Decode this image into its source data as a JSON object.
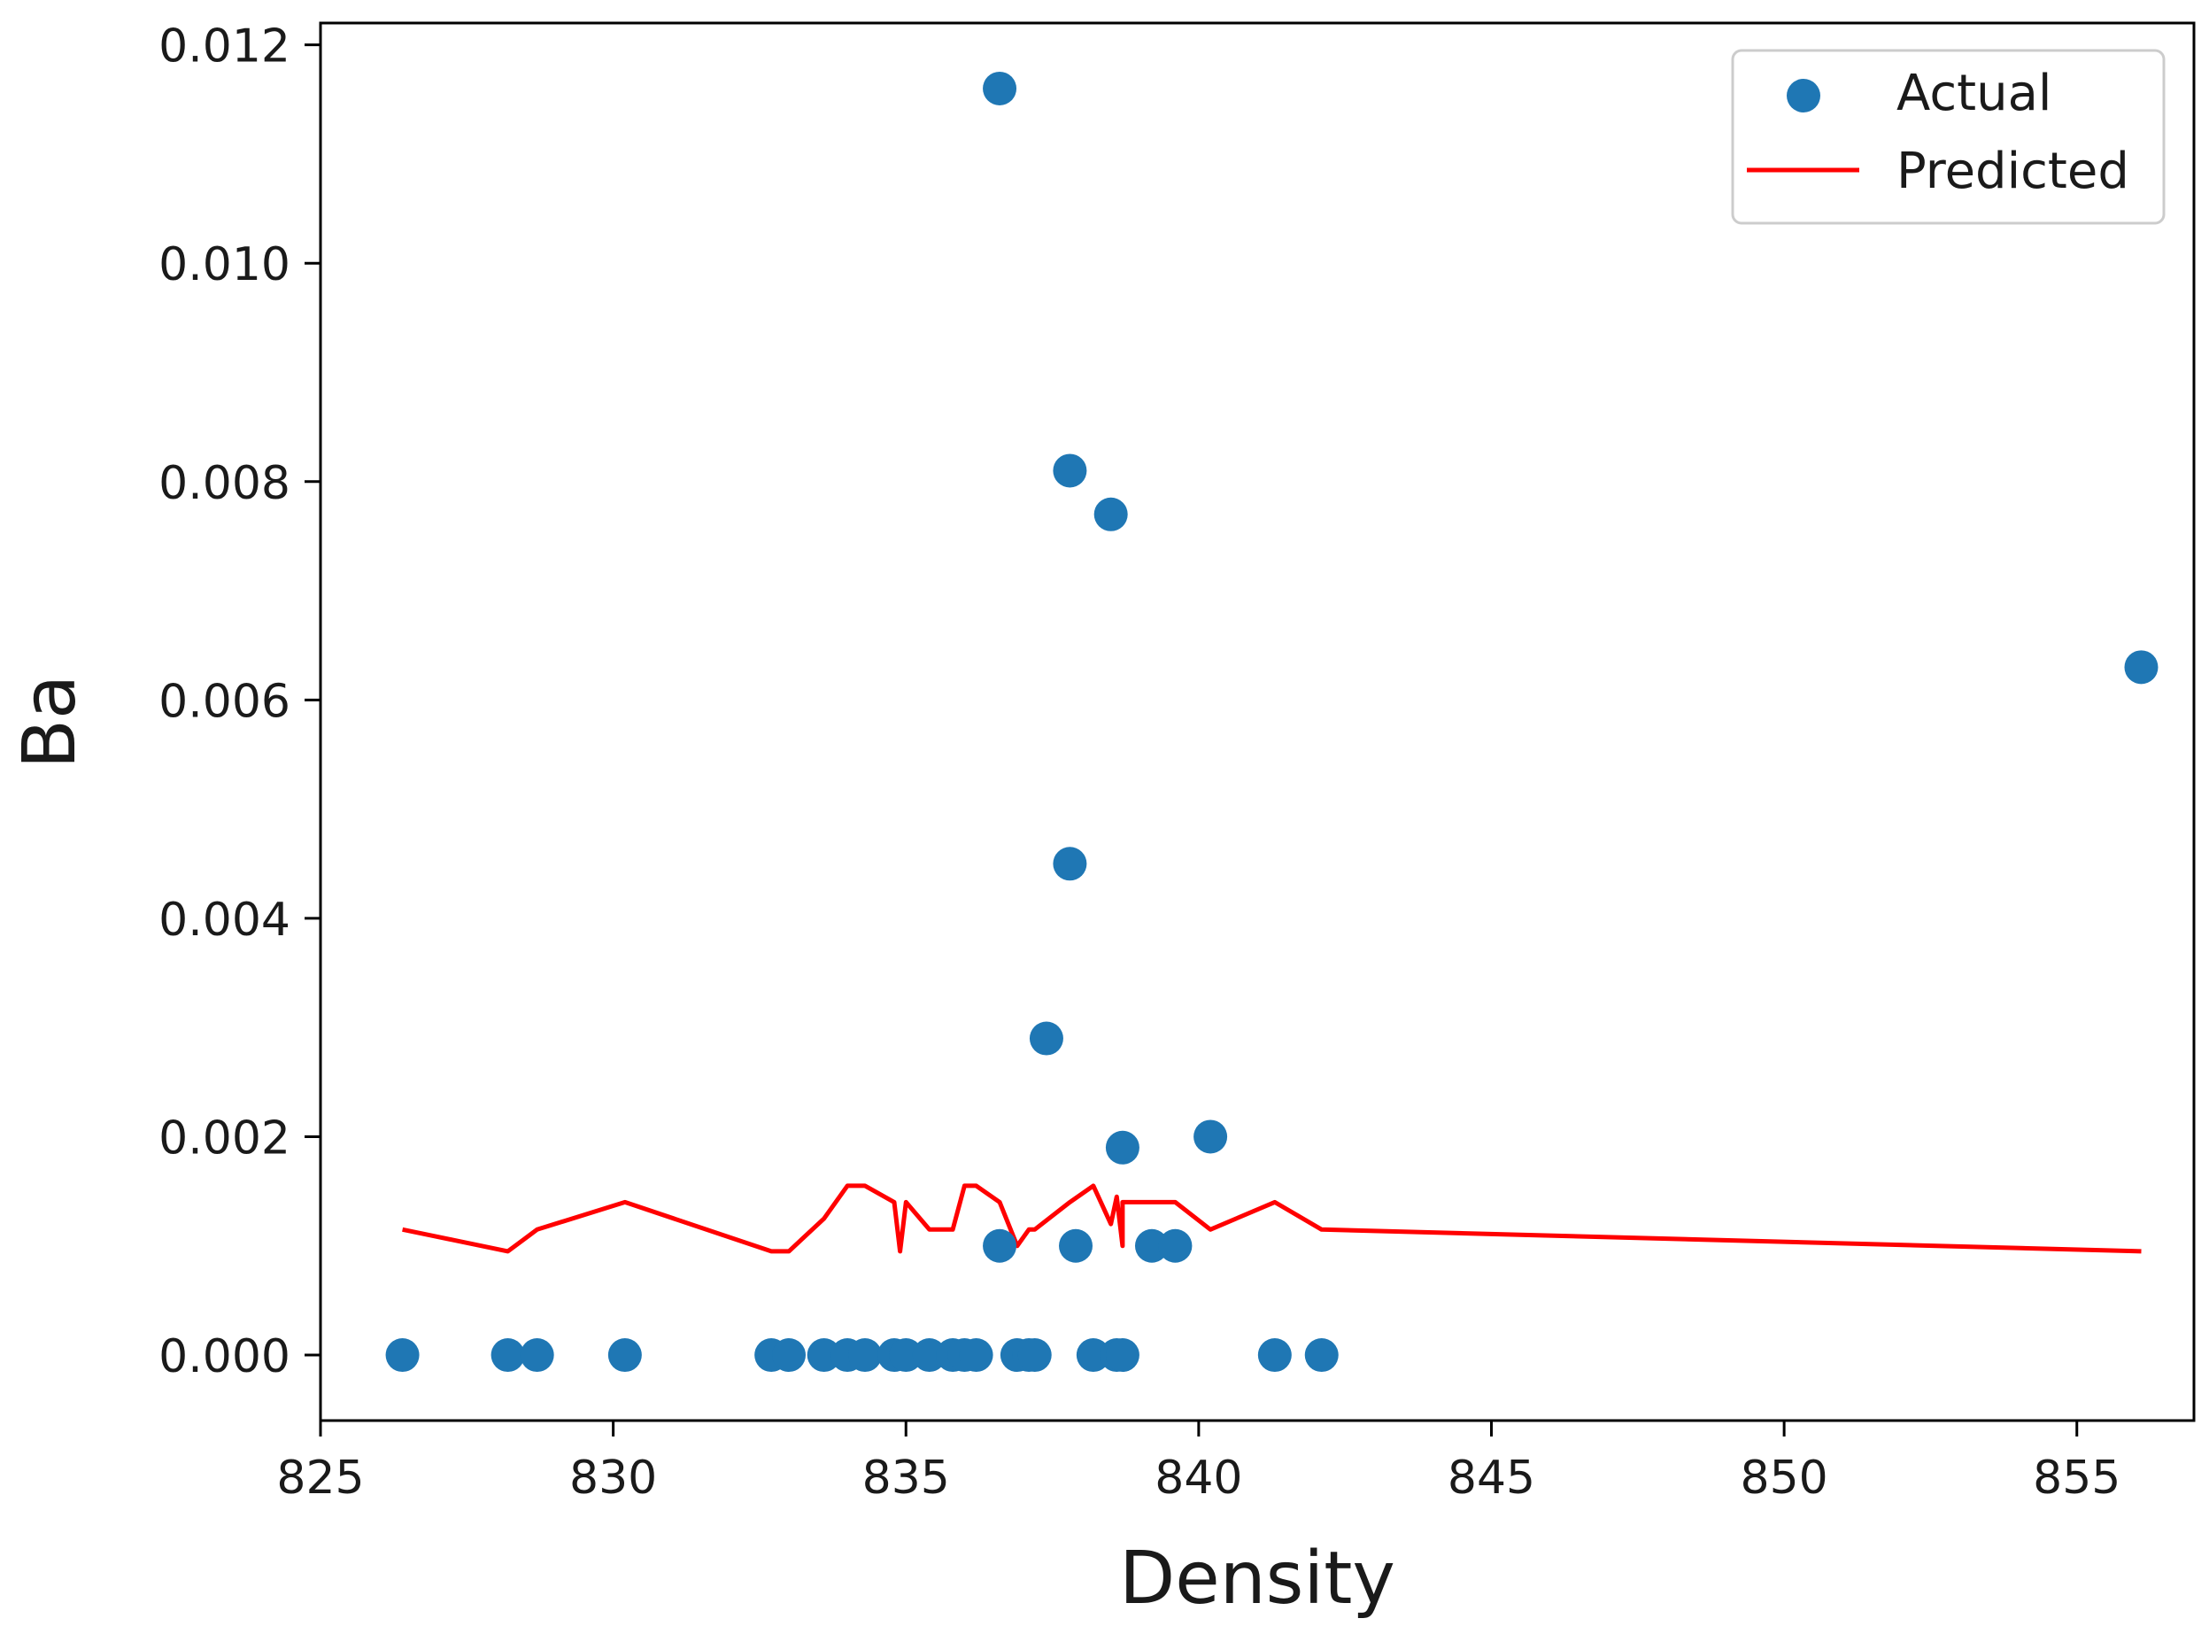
{
  "chart_data": {
    "type": "scatter",
    "title": "",
    "xlabel": "Density",
    "ylabel": "Ba",
    "xlim": [
      825,
      857
    ],
    "ylim": [
      -0.0006,
      0.0122
    ],
    "x_ticks": [
      825,
      830,
      835,
      840,
      845,
      850,
      855
    ],
    "x_tick_labels": [
      "825",
      "830",
      "835",
      "840",
      "845",
      "850",
      "855"
    ],
    "y_ticks": [
      0.0,
      0.002,
      0.004,
      0.006,
      0.008,
      0.01,
      0.012
    ],
    "y_tick_labels": [
      "0.000",
      "0.002",
      "0.004",
      "0.006",
      "0.008",
      "0.010",
      "0.012"
    ],
    "grid": false,
    "legend": {
      "position": "top-right",
      "entries": [
        "Actual",
        "Predicted"
      ]
    },
    "colors": {
      "actual": "#1f77b4",
      "predicted": "#ff0000"
    },
    "series": [
      {
        "name": "Actual",
        "kind": "scatter",
        "x": [
          826.4,
          828.2,
          828.7,
          830.2,
          832.7,
          833.0,
          833.6,
          834.0,
          834.3,
          834.8,
          835.0,
          835.4,
          835.8,
          836.0,
          836.2,
          836.6,
          836.6,
          836.9,
          837.1,
          837.2,
          837.4,
          837.8,
          837.8,
          837.9,
          838.2,
          838.5,
          838.6,
          838.7,
          838.7,
          839.2,
          839.6,
          840.2,
          841.3,
          842.1,
          856.1
        ],
        "y": [
          0.0,
          0.0,
          0.0,
          0.0,
          0.0,
          0.0,
          0.0,
          0.0,
          0.0,
          0.0,
          0.0,
          0.0,
          0.0,
          0.0,
          0.0,
          0.0116,
          0.001,
          0.0,
          0.0,
          0.0,
          0.0029,
          0.0081,
          0.0045,
          0.001,
          0.0,
          0.0077,
          0.0,
          0.0019,
          0.0,
          0.001,
          0.001,
          0.002,
          0.0,
          0.0,
          0.0063
        ]
      },
      {
        "name": "Predicted",
        "kind": "line",
        "x": [
          826.4,
          828.2,
          828.7,
          830.2,
          832.7,
          833.0,
          833.6,
          834.0,
          834.3,
          834.8,
          834.9,
          835.0,
          835.4,
          835.8,
          836.0,
          836.2,
          836.6,
          836.9,
          837.1,
          837.2,
          837.8,
          838.2,
          838.5,
          838.6,
          838.7,
          838.7,
          839.2,
          839.6,
          840.2,
          841.3,
          842.1,
          856.1
        ],
        "y": [
          0.00115,
          0.00095,
          0.00115,
          0.0014,
          0.00095,
          0.00095,
          0.00125,
          0.00155,
          0.00155,
          0.0014,
          0.00095,
          0.0014,
          0.00115,
          0.00115,
          0.00155,
          0.00155,
          0.0014,
          0.001,
          0.00115,
          0.00115,
          0.0014,
          0.00155,
          0.0012,
          0.00145,
          0.001,
          0.0014,
          0.0014,
          0.0014,
          0.00115,
          0.0014,
          0.00115,
          0.00095
        ]
      }
    ]
  }
}
